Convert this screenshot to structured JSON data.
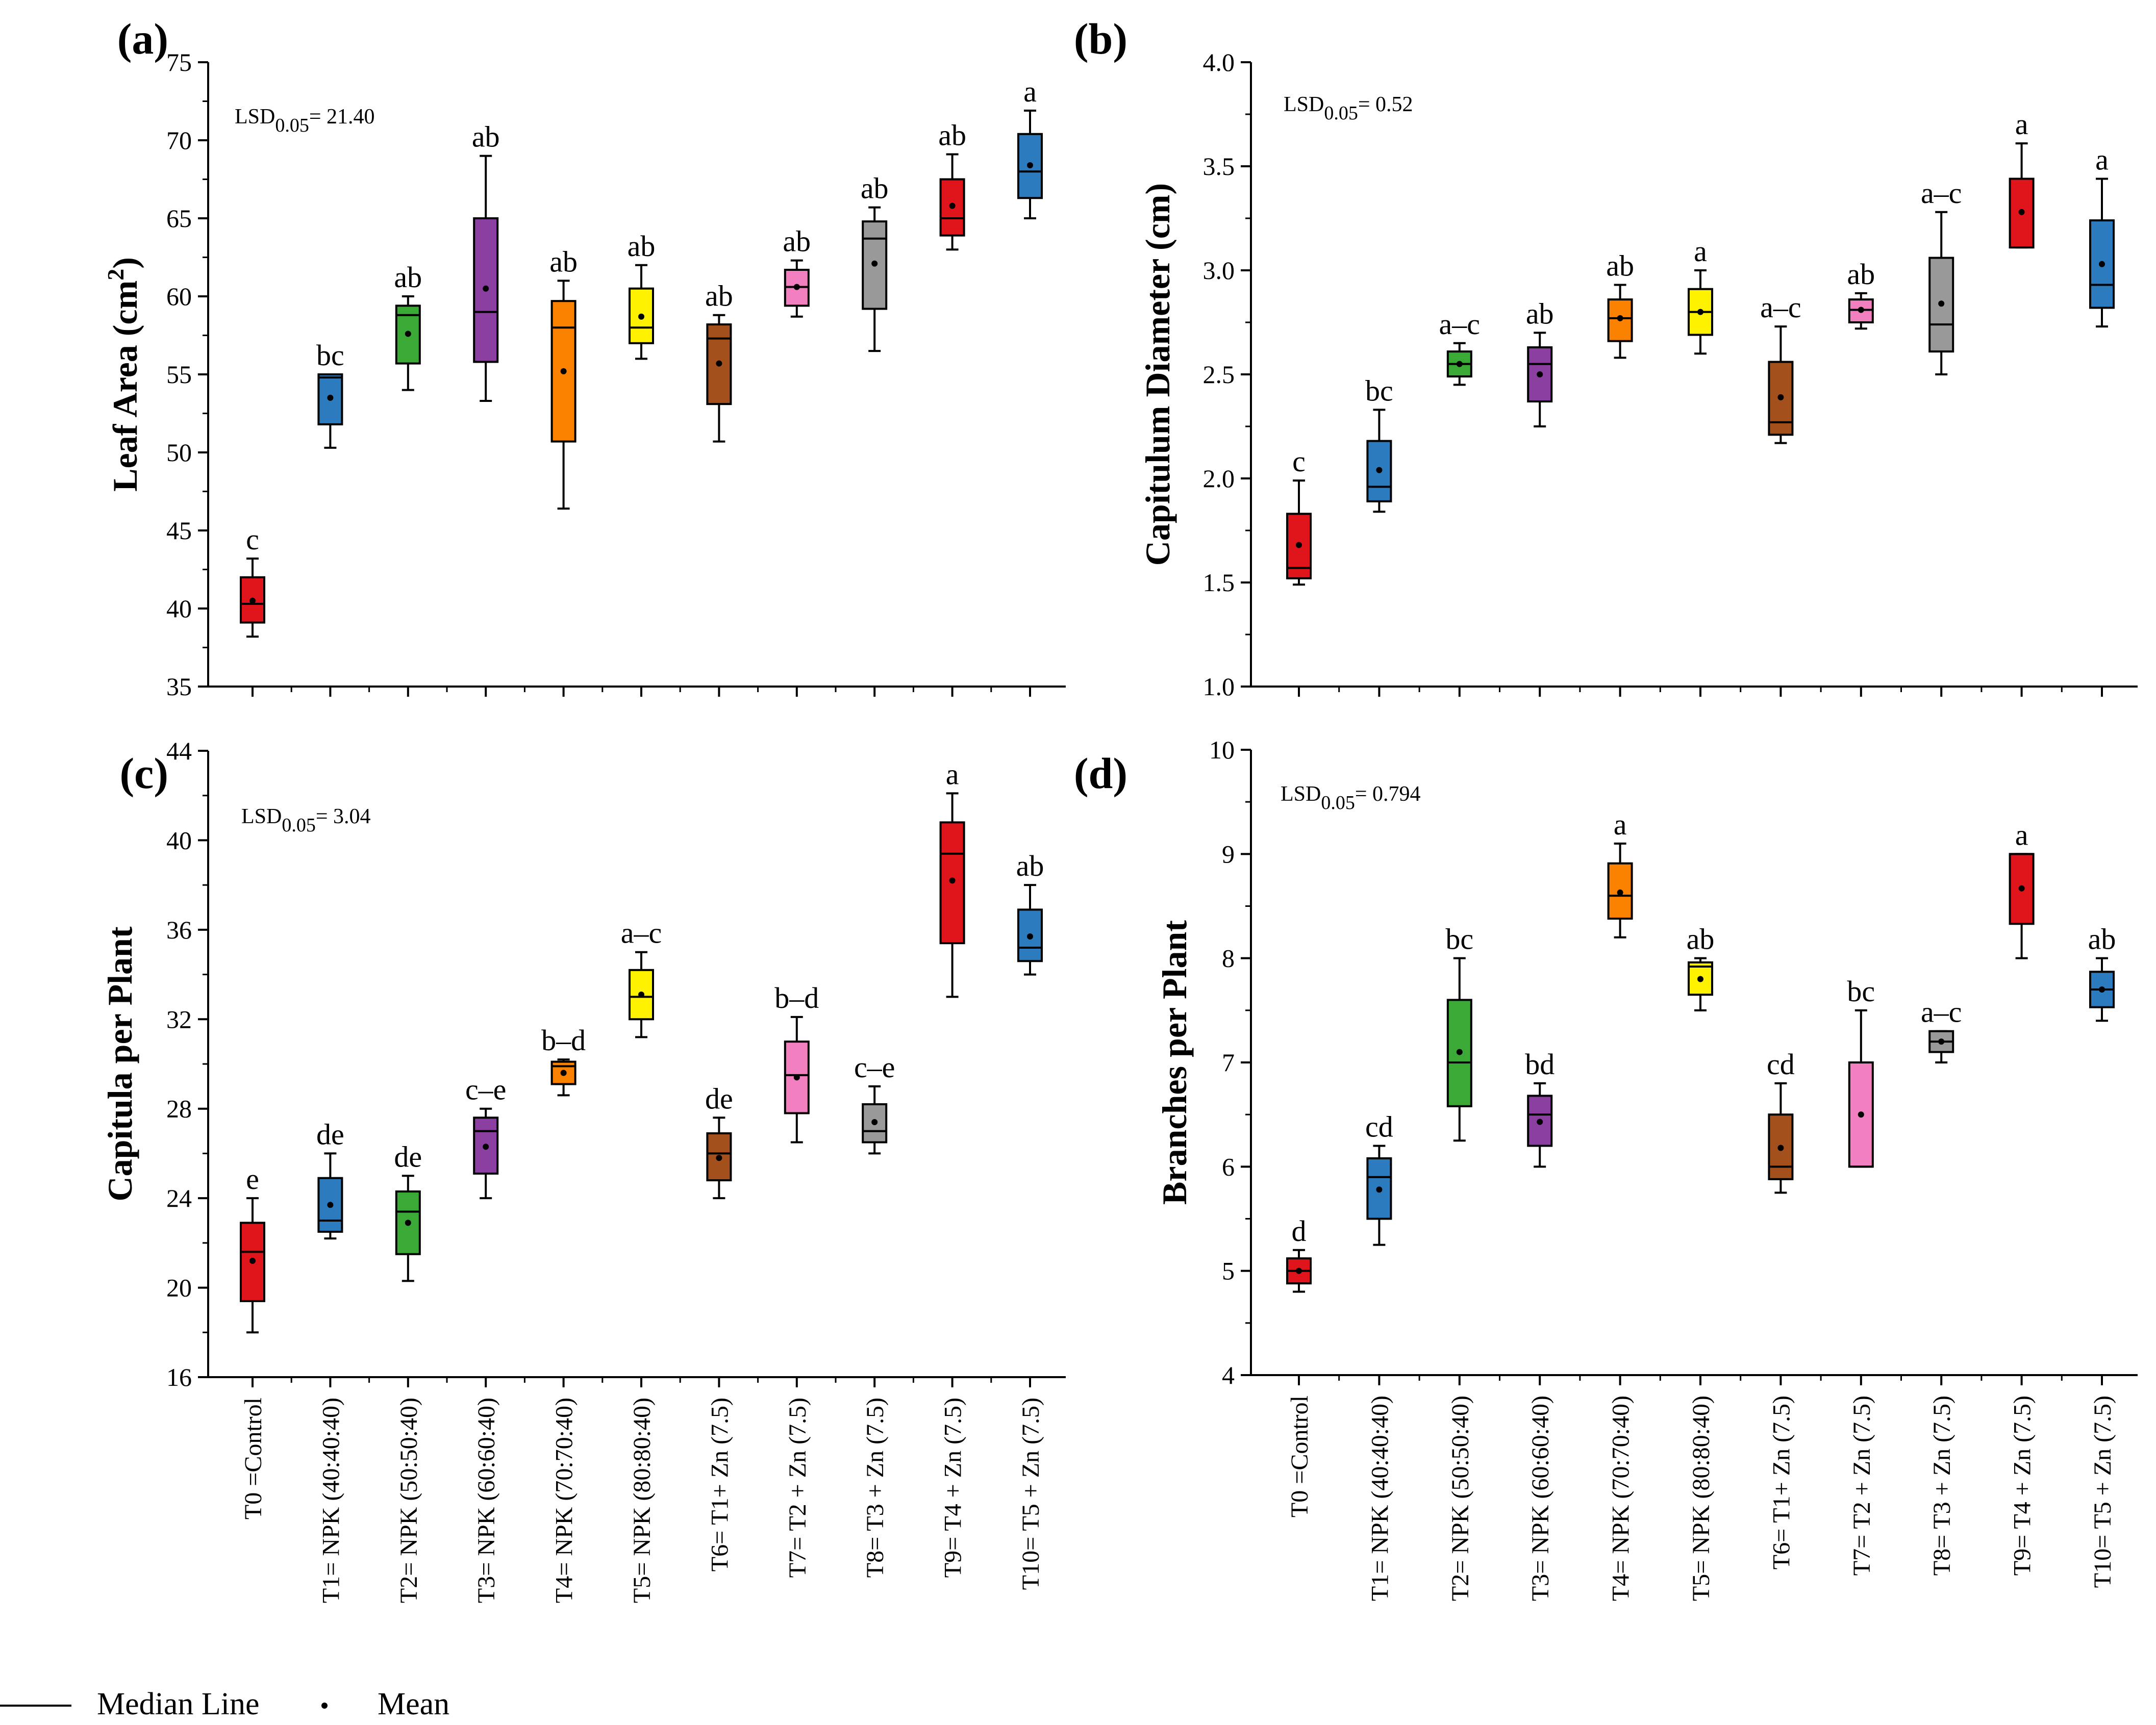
{
  "treatments": [
    "T0 =Control",
    "T1= NPK (40:40:40)",
    "T2= NPK (50:50:40)",
    "T3= NPK (60:60:40)",
    "T4= NPK (70:70:40)",
    "T5= NPK (80:80:40)",
    "T6= T1+ Zn (7.5)",
    "T7= T2 + Zn (7.5)",
    "T8= T3 + Zn (7.5)",
    "T9= T4 + Zn (7.5)",
    "T10= T5 + Zn (7.5)"
  ],
  "colors": [
    "#e0151b",
    "#2c7bbf",
    "#3aa935",
    "#8b3fa0",
    "#fb8200",
    "#fff200",
    "#a4501c",
    "#f27fbf",
    "#999999",
    "#e0151b",
    "#2c7bbf"
  ],
  "legend": {
    "median_label": "Median Line",
    "mean_label": "Mean"
  },
  "chart_data": [
    {
      "type": "box",
      "panel": "(a)",
      "ylabel": "Leaf Area (cm",
      "ylabel_sup": "2",
      "ylabel_close": ")",
      "lsd_prefix": "LSD",
      "lsd_sub": "0.05",
      "lsd_value": "= 21.40",
      "ylim": [
        35,
        75
      ],
      "yticks": [
        35,
        40,
        45,
        50,
        55,
        60,
        65,
        70,
        75
      ],
      "boxes": [
        {
          "min": 38.2,
          "q1": 39.1,
          "median": 40.3,
          "q3": 42.0,
          "max": 43.2,
          "mean": 40.5,
          "letter": "c"
        },
        {
          "min": 50.3,
          "q1": 51.8,
          "median": 54.8,
          "q3": 55.0,
          "max": 55.0,
          "mean": 53.5,
          "letter": "bc"
        },
        {
          "min": 54.0,
          "q1": 55.7,
          "median": 58.8,
          "q3": 59.4,
          "max": 60.0,
          "mean": 57.6,
          "letter": "ab"
        },
        {
          "min": 53.3,
          "q1": 55.8,
          "median": 59.0,
          "q3": 65.0,
          "max": 69.0,
          "mean": 60.5,
          "letter": "ab"
        },
        {
          "min": 46.4,
          "q1": 50.7,
          "median": 58.0,
          "q3": 59.7,
          "max": 61.0,
          "mean": 55.2,
          "letter": "ab"
        },
        {
          "min": 56.0,
          "q1": 57.0,
          "median": 58.0,
          "q3": 60.5,
          "max": 62.0,
          "mean": 58.7,
          "letter": "ab"
        },
        {
          "min": 50.7,
          "q1": 53.1,
          "median": 57.3,
          "q3": 58.2,
          "max": 58.8,
          "mean": 55.7,
          "letter": "ab"
        },
        {
          "min": 58.7,
          "q1": 59.4,
          "median": 60.6,
          "q3": 61.7,
          "max": 62.3,
          "mean": 60.6,
          "letter": "ab"
        },
        {
          "min": 56.5,
          "q1": 59.2,
          "median": 63.7,
          "q3": 64.8,
          "max": 65.7,
          "mean": 62.1,
          "letter": "ab"
        },
        {
          "min": 63.0,
          "q1": 63.9,
          "median": 65.0,
          "q3": 67.5,
          "max": 69.1,
          "mean": 65.8,
          "letter": "ab"
        },
        {
          "min": 65.0,
          "q1": 66.3,
          "median": 68.0,
          "q3": 70.4,
          "max": 71.9,
          "mean": 68.4,
          "letter": "a"
        }
      ]
    },
    {
      "type": "box",
      "panel": "(b)",
      "ylabel": "Capitulum Diameter (cm)",
      "lsd_prefix": "LSD",
      "lsd_sub": "0.05",
      "lsd_value": "= 0.52",
      "ylim": [
        1.0,
        4.0
      ],
      "yticks": [
        "1.0",
        "1.5",
        "2.0",
        "2.5",
        "3.0",
        "3.5",
        "4.0"
      ],
      "boxes": [
        {
          "min": 1.49,
          "q1": 1.52,
          "median": 1.57,
          "q3": 1.83,
          "max": 1.99,
          "mean": 1.68,
          "letter": "c"
        },
        {
          "min": 1.84,
          "q1": 1.89,
          "median": 1.96,
          "q3": 2.18,
          "max": 2.33,
          "mean": 2.04,
          "letter": "bc"
        },
        {
          "min": 2.45,
          "q1": 2.49,
          "median": 2.55,
          "q3": 2.61,
          "max": 2.65,
          "mean": 2.55,
          "letter": "a–c"
        },
        {
          "min": 2.25,
          "q1": 2.37,
          "median": 2.55,
          "q3": 2.63,
          "max": 2.7,
          "mean": 2.5,
          "letter": "ab"
        },
        {
          "min": 2.58,
          "q1": 2.66,
          "median": 2.77,
          "q3": 2.86,
          "max": 2.93,
          "mean": 2.77,
          "letter": "ab"
        },
        {
          "min": 2.6,
          "q1": 2.69,
          "median": 2.8,
          "q3": 2.91,
          "max": 3.0,
          "mean": 2.8,
          "letter": "a"
        },
        {
          "min": 2.17,
          "q1": 2.21,
          "median": 2.27,
          "q3": 2.56,
          "max": 2.73,
          "mean": 2.39,
          "letter": "a–c"
        },
        {
          "min": 2.72,
          "q1": 2.75,
          "median": 2.81,
          "q3": 2.86,
          "max": 2.89,
          "mean": 2.81,
          "letter": "ab"
        },
        {
          "min": 2.5,
          "q1": 2.61,
          "median": 2.74,
          "q3": 3.06,
          "max": 3.28,
          "mean": 2.84,
          "letter": "a–c"
        },
        {
          "min": 3.11,
          "q1": 3.11,
          "median": 3.11,
          "q3": 3.44,
          "max": 3.61,
          "mean": 3.28,
          "letter": "a"
        },
        {
          "min": 2.73,
          "q1": 2.82,
          "median": 2.93,
          "q3": 3.24,
          "max": 3.44,
          "mean": 3.03,
          "letter": "a"
        }
      ]
    },
    {
      "type": "box",
      "panel": "(c)",
      "ylabel": "Capitula per Plant",
      "lsd_prefix": "LSD",
      "lsd_sub": "0.05",
      "lsd_value": "= 3.04",
      "ylim": [
        16,
        44
      ],
      "yticks": [
        16,
        20,
        24,
        28,
        32,
        36,
        40,
        44
      ],
      "boxes": [
        {
          "min": 18.0,
          "q1": 19.4,
          "median": 21.6,
          "q3": 22.9,
          "max": 24.0,
          "mean": 21.2,
          "letter": "e"
        },
        {
          "min": 22.2,
          "q1": 22.5,
          "median": 23.0,
          "q3": 24.9,
          "max": 26.0,
          "mean": 23.7,
          "letter": "de"
        },
        {
          "min": 20.3,
          "q1": 21.5,
          "median": 23.4,
          "q3": 24.3,
          "max": 25.0,
          "mean": 22.9,
          "letter": "de"
        },
        {
          "min": 24.0,
          "q1": 25.1,
          "median": 27.0,
          "q3": 27.6,
          "max": 28.0,
          "mean": 26.3,
          "letter": "c–e"
        },
        {
          "min": 28.6,
          "q1": 29.1,
          "median": 29.9,
          "q3": 30.1,
          "max": 30.2,
          "mean": 29.6,
          "letter": "b–d"
        },
        {
          "min": 31.2,
          "q1": 32.0,
          "median": 33.0,
          "q3": 34.2,
          "max": 35.0,
          "mean": 33.1,
          "letter": "a–c"
        },
        {
          "min": 24.0,
          "q1": 24.8,
          "median": 26.0,
          "q3": 26.9,
          "max": 27.6,
          "mean": 25.8,
          "letter": "de"
        },
        {
          "min": 26.5,
          "q1": 27.8,
          "median": 29.5,
          "q3": 31.0,
          "max": 32.1,
          "mean": 29.4,
          "letter": "b–d"
        },
        {
          "min": 26.0,
          "q1": 26.5,
          "median": 27.0,
          "q3": 28.2,
          "max": 29.0,
          "mean": 27.4,
          "letter": "c–e"
        },
        {
          "min": 33.0,
          "q1": 35.4,
          "median": 39.4,
          "q3": 40.8,
          "max": 42.1,
          "mean": 38.2,
          "letter": "a"
        },
        {
          "min": 34.0,
          "q1": 34.6,
          "median": 35.2,
          "q3": 36.9,
          "max": 38.0,
          "mean": 35.7,
          "letter": "ab"
        }
      ]
    },
    {
      "type": "box",
      "panel": "(d)",
      "ylabel": "Branches per Plant",
      "lsd_prefix": "LSD",
      "lsd_sub": "0.05",
      "lsd_value": "= 0.794",
      "ylim": [
        4,
        10
      ],
      "yticks": [
        4,
        5,
        6,
        7,
        8,
        9,
        10
      ],
      "boxes": [
        {
          "min": 4.8,
          "q1": 4.88,
          "median": 5.0,
          "q3": 5.12,
          "max": 5.2,
          "mean": 5.0,
          "letter": "d"
        },
        {
          "min": 5.25,
          "q1": 5.5,
          "median": 5.9,
          "q3": 6.08,
          "max": 6.2,
          "mean": 5.78,
          "letter": "cd"
        },
        {
          "min": 6.25,
          "q1": 6.58,
          "median": 7.0,
          "q3": 7.6,
          "max": 8.0,
          "mean": 7.1,
          "letter": "bc"
        },
        {
          "min": 6.0,
          "q1": 6.2,
          "median": 6.5,
          "q3": 6.68,
          "max": 6.8,
          "mean": 6.43,
          "letter": "bd"
        },
        {
          "min": 8.2,
          "q1": 8.38,
          "median": 8.6,
          "q3": 8.91,
          "max": 9.1,
          "mean": 8.63,
          "letter": "a"
        },
        {
          "min": 7.5,
          "q1": 7.65,
          "median": 7.92,
          "q3": 7.96,
          "max": 8.0,
          "mean": 7.8,
          "letter": "ab"
        },
        {
          "min": 5.75,
          "q1": 5.88,
          "median": 6.0,
          "q3": 6.5,
          "max": 6.8,
          "mean": 6.18,
          "letter": "cd"
        },
        {
          "min": 6.0,
          "q1": 6.0,
          "median": 6.0,
          "q3": 7.0,
          "max": 7.5,
          "mean": 6.5,
          "letter": "bc"
        },
        {
          "min": 7.0,
          "q1": 7.1,
          "median": 7.2,
          "q3": 7.3,
          "max": 7.3,
          "mean": 7.2,
          "letter": "a–c"
        },
        {
          "min": 8.0,
          "q1": 8.33,
          "median": 9.0,
          "q3": 9.0,
          "max": 9.0,
          "mean": 8.67,
          "letter": "a"
        },
        {
          "min": 7.4,
          "q1": 7.53,
          "median": 7.7,
          "q3": 7.87,
          "max": 8.0,
          "mean": 7.7,
          "letter": "ab"
        }
      ]
    }
  ]
}
